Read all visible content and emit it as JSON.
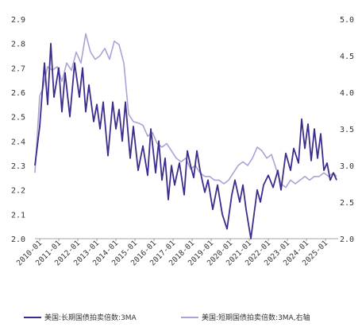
{
  "chart_data": {
    "type": "line",
    "title": "",
    "xlabel": "",
    "x_ticks": [
      "2010-01",
      "2011-01",
      "2012-01",
      "2013-01",
      "2014-01",
      "2015-01",
      "2016-01",
      "2017-01",
      "2018-01",
      "2019-01",
      "2020-01",
      "2021-01",
      "2022-01",
      "2023-01",
      "2024-01",
      "2025-01"
    ],
    "y_left": {
      "range": [
        2.0,
        2.9
      ],
      "ticks": [
        "2.0",
        "2.1",
        "2.2",
        "2.3",
        "2.4",
        "2.5",
        "2.6",
        "2.7",
        "2.8",
        "2.9"
      ]
    },
    "y_right": {
      "range": [
        2.0,
        5.0
      ],
      "ticks": [
        "2.0",
        "2.5",
        "3.0",
        "3.5",
        "4.0",
        "4.5",
        "5.0"
      ]
    },
    "legend_position": "bottom",
    "grid": false,
    "series": [
      {
        "name": "美国:长期国债拍卖倍数:3MA",
        "axis": "left",
        "color": "#3b2d8c",
        "points": [
          [
            "2009-10",
            2.3
          ],
          [
            "2010-01",
            2.46
          ],
          [
            "2010-04",
            2.72
          ],
          [
            "2010-06",
            2.55
          ],
          [
            "2010-08",
            2.8
          ],
          [
            "2010-10",
            2.58
          ],
          [
            "2011-01",
            2.7
          ],
          [
            "2011-03",
            2.52
          ],
          [
            "2011-05",
            2.68
          ],
          [
            "2011-08",
            2.5
          ],
          [
            "2011-11",
            2.72
          ],
          [
            "2012-02",
            2.58
          ],
          [
            "2012-04",
            2.7
          ],
          [
            "2012-06",
            2.52
          ],
          [
            "2012-08",
            2.63
          ],
          [
            "2012-11",
            2.48
          ],
          [
            "2013-01",
            2.55
          ],
          [
            "2013-03",
            2.45
          ],
          [
            "2013-05",
            2.56
          ],
          [
            "2013-08",
            2.34
          ],
          [
            "2013-11",
            2.56
          ],
          [
            "2014-01",
            2.45
          ],
          [
            "2014-03",
            2.53
          ],
          [
            "2014-05",
            2.4
          ],
          [
            "2014-07",
            2.56
          ],
          [
            "2014-10",
            2.33
          ],
          [
            "2014-12",
            2.46
          ],
          [
            "2015-03",
            2.28
          ],
          [
            "2015-06",
            2.38
          ],
          [
            "2015-09",
            2.26
          ],
          [
            "2015-11",
            2.45
          ],
          [
            "2016-02",
            2.27
          ],
          [
            "2016-04",
            2.4
          ],
          [
            "2016-06",
            2.24
          ],
          [
            "2016-08",
            2.33
          ],
          [
            "2016-10",
            2.16
          ],
          [
            "2016-12",
            2.3
          ],
          [
            "2017-02",
            2.22
          ],
          [
            "2017-05",
            2.31
          ],
          [
            "2017-08",
            2.18
          ],
          [
            "2017-10",
            2.36
          ],
          [
            "2017-12",
            2.3
          ],
          [
            "2018-02",
            2.25
          ],
          [
            "2018-04",
            2.36
          ],
          [
            "2018-06",
            2.28
          ],
          [
            "2018-09",
            2.19
          ],
          [
            "2018-11",
            2.24
          ],
          [
            "2019-02",
            2.12
          ],
          [
            "2019-05",
            2.22
          ],
          [
            "2019-08",
            2.1
          ],
          [
            "2019-11",
            2.04
          ],
          [
            "2020-02",
            2.18
          ],
          [
            "2020-04",
            2.24
          ],
          [
            "2020-07",
            2.15
          ],
          [
            "2020-09",
            2.22
          ],
          [
            "2020-11",
            2.12
          ],
          [
            "2021-02",
            2.0
          ],
          [
            "2021-04",
            2.1
          ],
          [
            "2021-06",
            2.2
          ],
          [
            "2021-08",
            2.15
          ],
          [
            "2021-10",
            2.22
          ],
          [
            "2022-01",
            2.26
          ],
          [
            "2022-04",
            2.21
          ],
          [
            "2022-07",
            2.28
          ],
          [
            "2022-09",
            2.2
          ],
          [
            "2022-12",
            2.35
          ],
          [
            "2023-03",
            2.28
          ],
          [
            "2023-05",
            2.37
          ],
          [
            "2023-08",
            2.31
          ],
          [
            "2023-10",
            2.49
          ],
          [
            "2023-12",
            2.37
          ],
          [
            "2024-02",
            2.47
          ],
          [
            "2024-04",
            2.32
          ],
          [
            "2024-06",
            2.45
          ],
          [
            "2024-08",
            2.33
          ],
          [
            "2024-10",
            2.43
          ],
          [
            "2024-12",
            2.28
          ],
          [
            "2025-02",
            2.31
          ],
          [
            "2025-04",
            2.24
          ],
          [
            "2025-06",
            2.27
          ],
          [
            "2025-08",
            2.24
          ]
        ]
      },
      {
        "name": "美国:短期国债拍卖倍数:3MA,右轴",
        "axis": "right",
        "color": "#aaa3d6",
        "points": [
          [
            "2009-10",
            2.9
          ],
          [
            "2010-01",
            3.95
          ],
          [
            "2010-03",
            4.05
          ],
          [
            "2010-06",
            4.35
          ],
          [
            "2010-09",
            4.3
          ],
          [
            "2010-12",
            4.35
          ],
          [
            "2011-03",
            4.15
          ],
          [
            "2011-06",
            4.4
          ],
          [
            "2011-09",
            4.3
          ],
          [
            "2011-12",
            4.55
          ],
          [
            "2012-03",
            4.4
          ],
          [
            "2012-06",
            4.8
          ],
          [
            "2012-09",
            4.55
          ],
          [
            "2012-12",
            4.45
          ],
          [
            "2013-03",
            4.5
          ],
          [
            "2013-06",
            4.6
          ],
          [
            "2013-09",
            4.45
          ],
          [
            "2013-12",
            4.7
          ],
          [
            "2014-03",
            4.65
          ],
          [
            "2014-06",
            4.4
          ],
          [
            "2014-09",
            3.7
          ],
          [
            "2014-12",
            3.6
          ],
          [
            "2015-03",
            3.58
          ],
          [
            "2015-06",
            3.55
          ],
          [
            "2015-09",
            3.4
          ],
          [
            "2015-12",
            3.45
          ],
          [
            "2016-03",
            3.3
          ],
          [
            "2016-06",
            3.25
          ],
          [
            "2016-09",
            3.3
          ],
          [
            "2016-12",
            3.2
          ],
          [
            "2017-03",
            3.1
          ],
          [
            "2017-06",
            3.05
          ],
          [
            "2017-09",
            3.1
          ],
          [
            "2017-12",
            2.95
          ],
          [
            "2018-03",
            3.0
          ],
          [
            "2018-06",
            2.9
          ],
          [
            "2018-09",
            2.85
          ],
          [
            "2018-12",
            2.85
          ],
          [
            "2019-03",
            2.8
          ],
          [
            "2019-06",
            2.8
          ],
          [
            "2019-09",
            2.75
          ],
          [
            "2019-12",
            2.8
          ],
          [
            "2020-03",
            2.9
          ],
          [
            "2020-06",
            3.0
          ],
          [
            "2020-09",
            3.05
          ],
          [
            "2020-12",
            3.0
          ],
          [
            "2021-03",
            3.1
          ],
          [
            "2021-06",
            3.25
          ],
          [
            "2021-09",
            3.2
          ],
          [
            "2021-12",
            3.1
          ],
          [
            "2022-03",
            3.15
          ],
          [
            "2022-06",
            2.95
          ],
          [
            "2022-09",
            2.75
          ],
          [
            "2022-12",
            2.7
          ],
          [
            "2023-03",
            2.8
          ],
          [
            "2023-06",
            2.75
          ],
          [
            "2023-09",
            2.8
          ],
          [
            "2023-12",
            2.85
          ],
          [
            "2024-03",
            2.8
          ],
          [
            "2024-06",
            2.85
          ],
          [
            "2024-09",
            2.85
          ],
          [
            "2024-12",
            2.9
          ],
          [
            "2025-03",
            2.85
          ],
          [
            "2025-06",
            2.9
          ],
          [
            "2025-08",
            2.85
          ]
        ]
      }
    ]
  }
}
